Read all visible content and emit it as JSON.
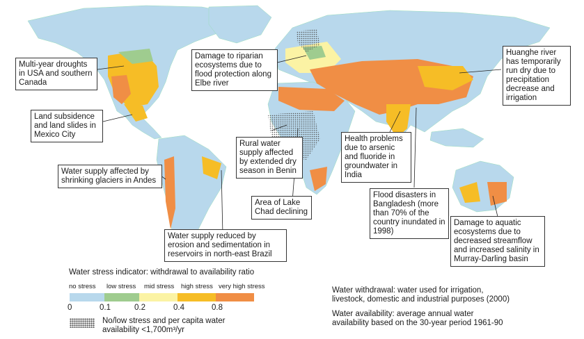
{
  "colors": {
    "no_stress": "#b8d8ec",
    "low_stress": "#9fcc8f",
    "mid_stress": "#fbf3a4",
    "high_stress": "#f6bd26",
    "very_high_stress": "#f08e45",
    "stipple": "#555555",
    "ocean": "#ffffff"
  },
  "callouts": {
    "usa": "Multi-year droughts in USA and southern Canada",
    "elbe": "Damage to riparian ecosystems due to flood protection along Elbe river",
    "huanghe": "Huanghe river has temporarily run dry due to precipitation decrease and irrigation",
    "mexico": "Land subsidence and land slides in Mexico City",
    "benin": "Rural water supply affected by extended dry season in Benin",
    "india": "Health problems due to arsenic and fluoride in groundwater in India",
    "andes": "Water supply affected by shrinking glaciers in Andes",
    "chad": "Area of Lake Chad declining",
    "bangladesh": "Flood disasters in Bangladesh (more than 70% of the country inundated in 1998)",
    "murray": "Damage to aquatic ecosystems due to decreased streamflow and increased salinity in Murray-Darling basin",
    "brazil": "Water supply reduced by erosion and sedimentation in reservoirs in north-east Brazil"
  },
  "legend": {
    "title": "Water stress indicator: withdrawal to availability ratio",
    "categories": [
      "no stress",
      "low stress",
      "mid stress",
      "high stress",
      "very high stress"
    ],
    "ticks": [
      "0",
      "0.1",
      "0.2",
      "0.4",
      "0.8"
    ],
    "stipple_label_line1": "No/low stress and per capita water",
    "stipple_label_line2": "availability <1,700m³/yr"
  },
  "notes": {
    "withdrawal_line1": "Water withdrawal: water used for irrigation,",
    "withdrawal_line2": "livestock, domestic and industrial purposes (2000)",
    "availability_line1": "Water availability: average annual water",
    "availability_line2": "availability based on the 30-year period 1961-90"
  }
}
